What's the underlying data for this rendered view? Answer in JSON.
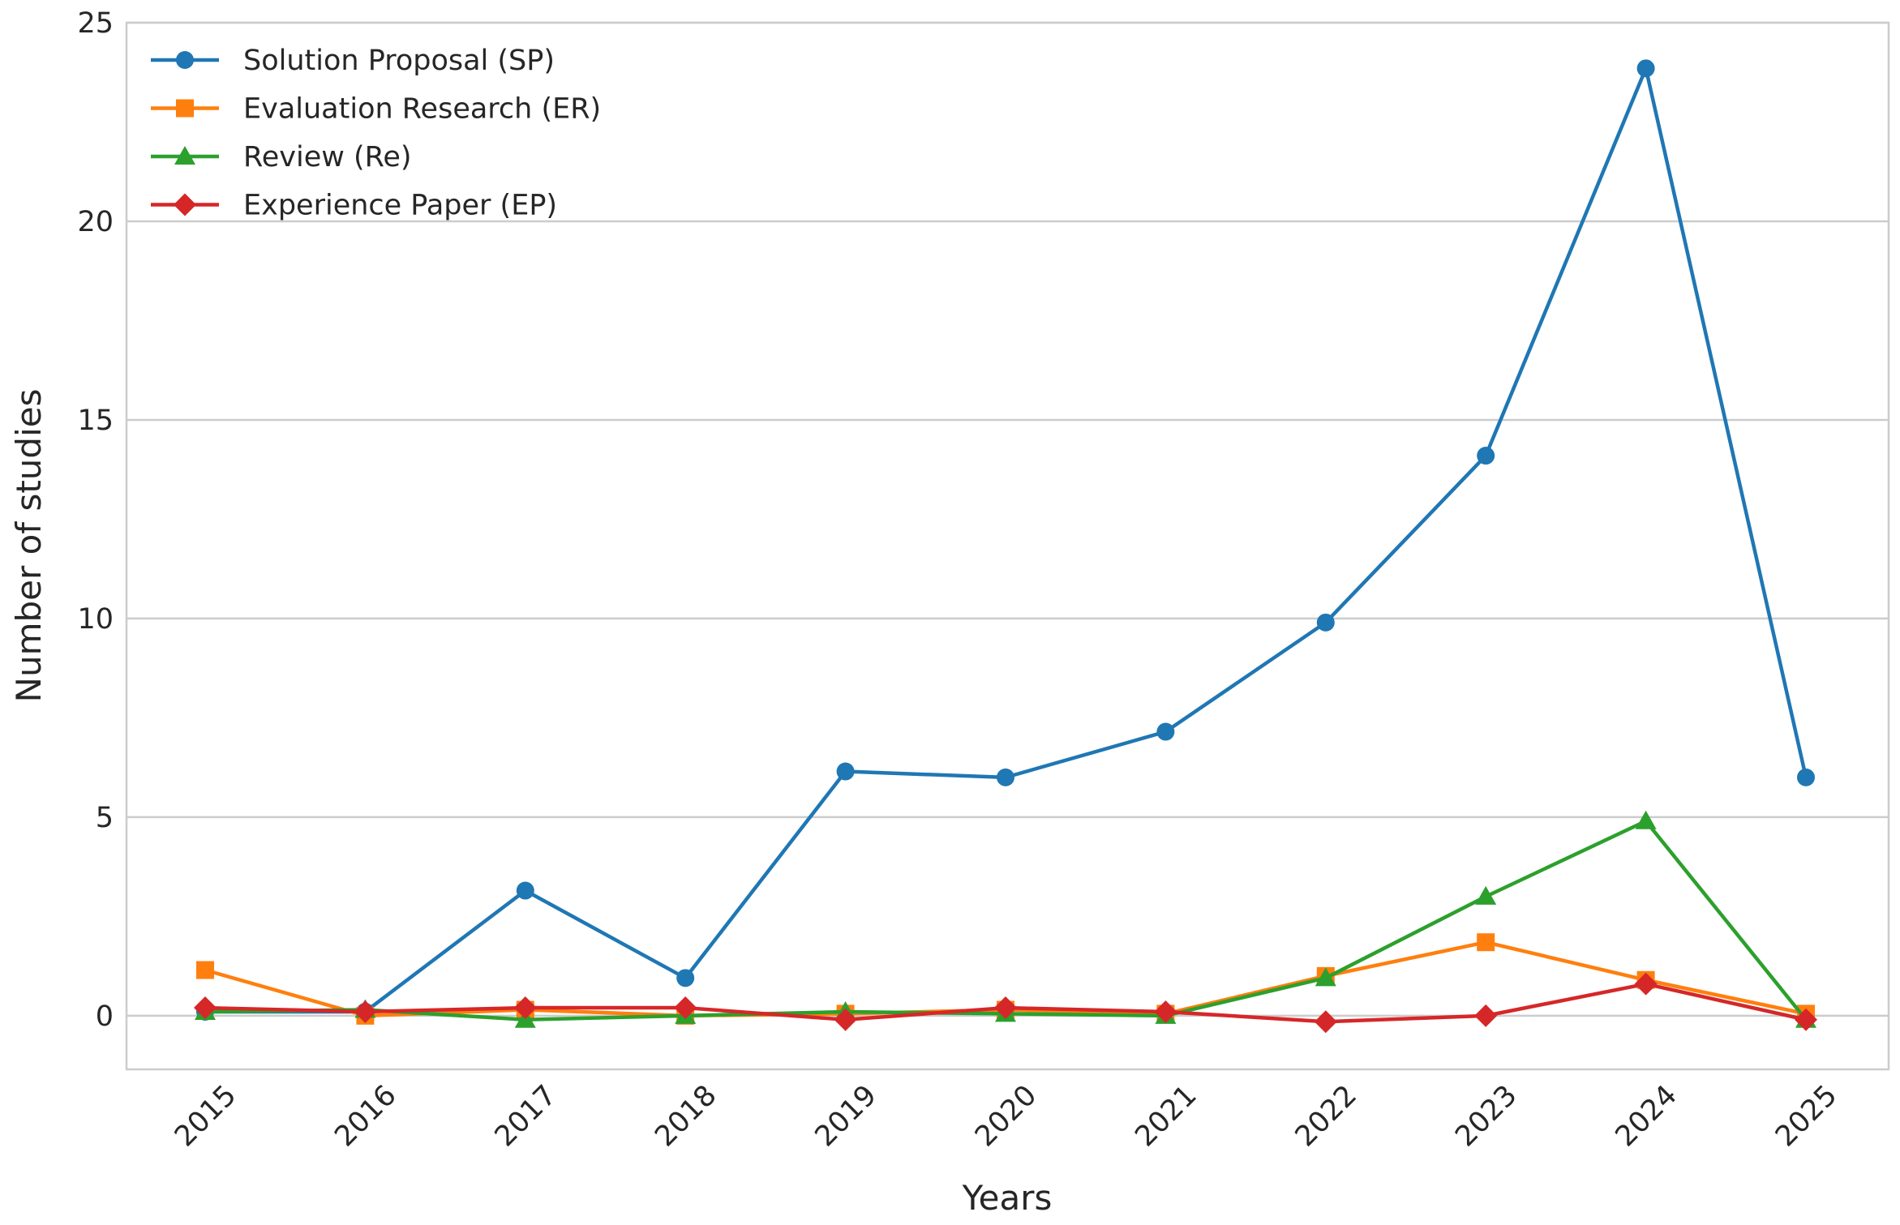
{
  "chart_data": {
    "type": "line",
    "title": "",
    "xlabel": "Years",
    "ylabel": "Number of studies",
    "categories": [
      "2015",
      "2016",
      "2017",
      "2018",
      "2019",
      "2020",
      "2021",
      "2022",
      "2023",
      "2024",
      "2025"
    ],
    "ylim": [
      -1.35,
      25
    ],
    "yticks": [
      "0",
      "5",
      "10",
      "15",
      "20",
      "25"
    ],
    "grid": "horizontal",
    "legend_position": "top-left",
    "series": [
      {
        "name": "Solution Proposal (SP)",
        "color": "#1f77b4",
        "marker": "circle",
        "values": [
          0.1,
          0.1,
          3.15,
          0.95,
          6.15,
          6.0,
          7.15,
          9.9,
          14.1,
          23.85,
          6.0
        ]
      },
      {
        "name": "Evaluation Research (ER)",
        "color": "#ff7f0e",
        "marker": "square",
        "values": [
          1.15,
          0.0,
          0.15,
          0.0,
          0.05,
          0.15,
          0.05,
          1.0,
          1.85,
          0.9,
          0.05
        ]
      },
      {
        "name": "Review (Re)",
        "color": "#2ca02c",
        "marker": "triangle",
        "values": [
          0.1,
          0.15,
          -0.1,
          0.0,
          0.1,
          0.05,
          0.0,
          0.95,
          3.0,
          4.9,
          -0.1
        ]
      },
      {
        "name": "Experience Paper (EP)",
        "color": "#d62728",
        "marker": "diamond",
        "values": [
          0.2,
          0.1,
          0.2,
          0.2,
          -0.1,
          0.2,
          0.1,
          -0.15,
          0.0,
          0.8,
          -0.1
        ]
      }
    ]
  }
}
